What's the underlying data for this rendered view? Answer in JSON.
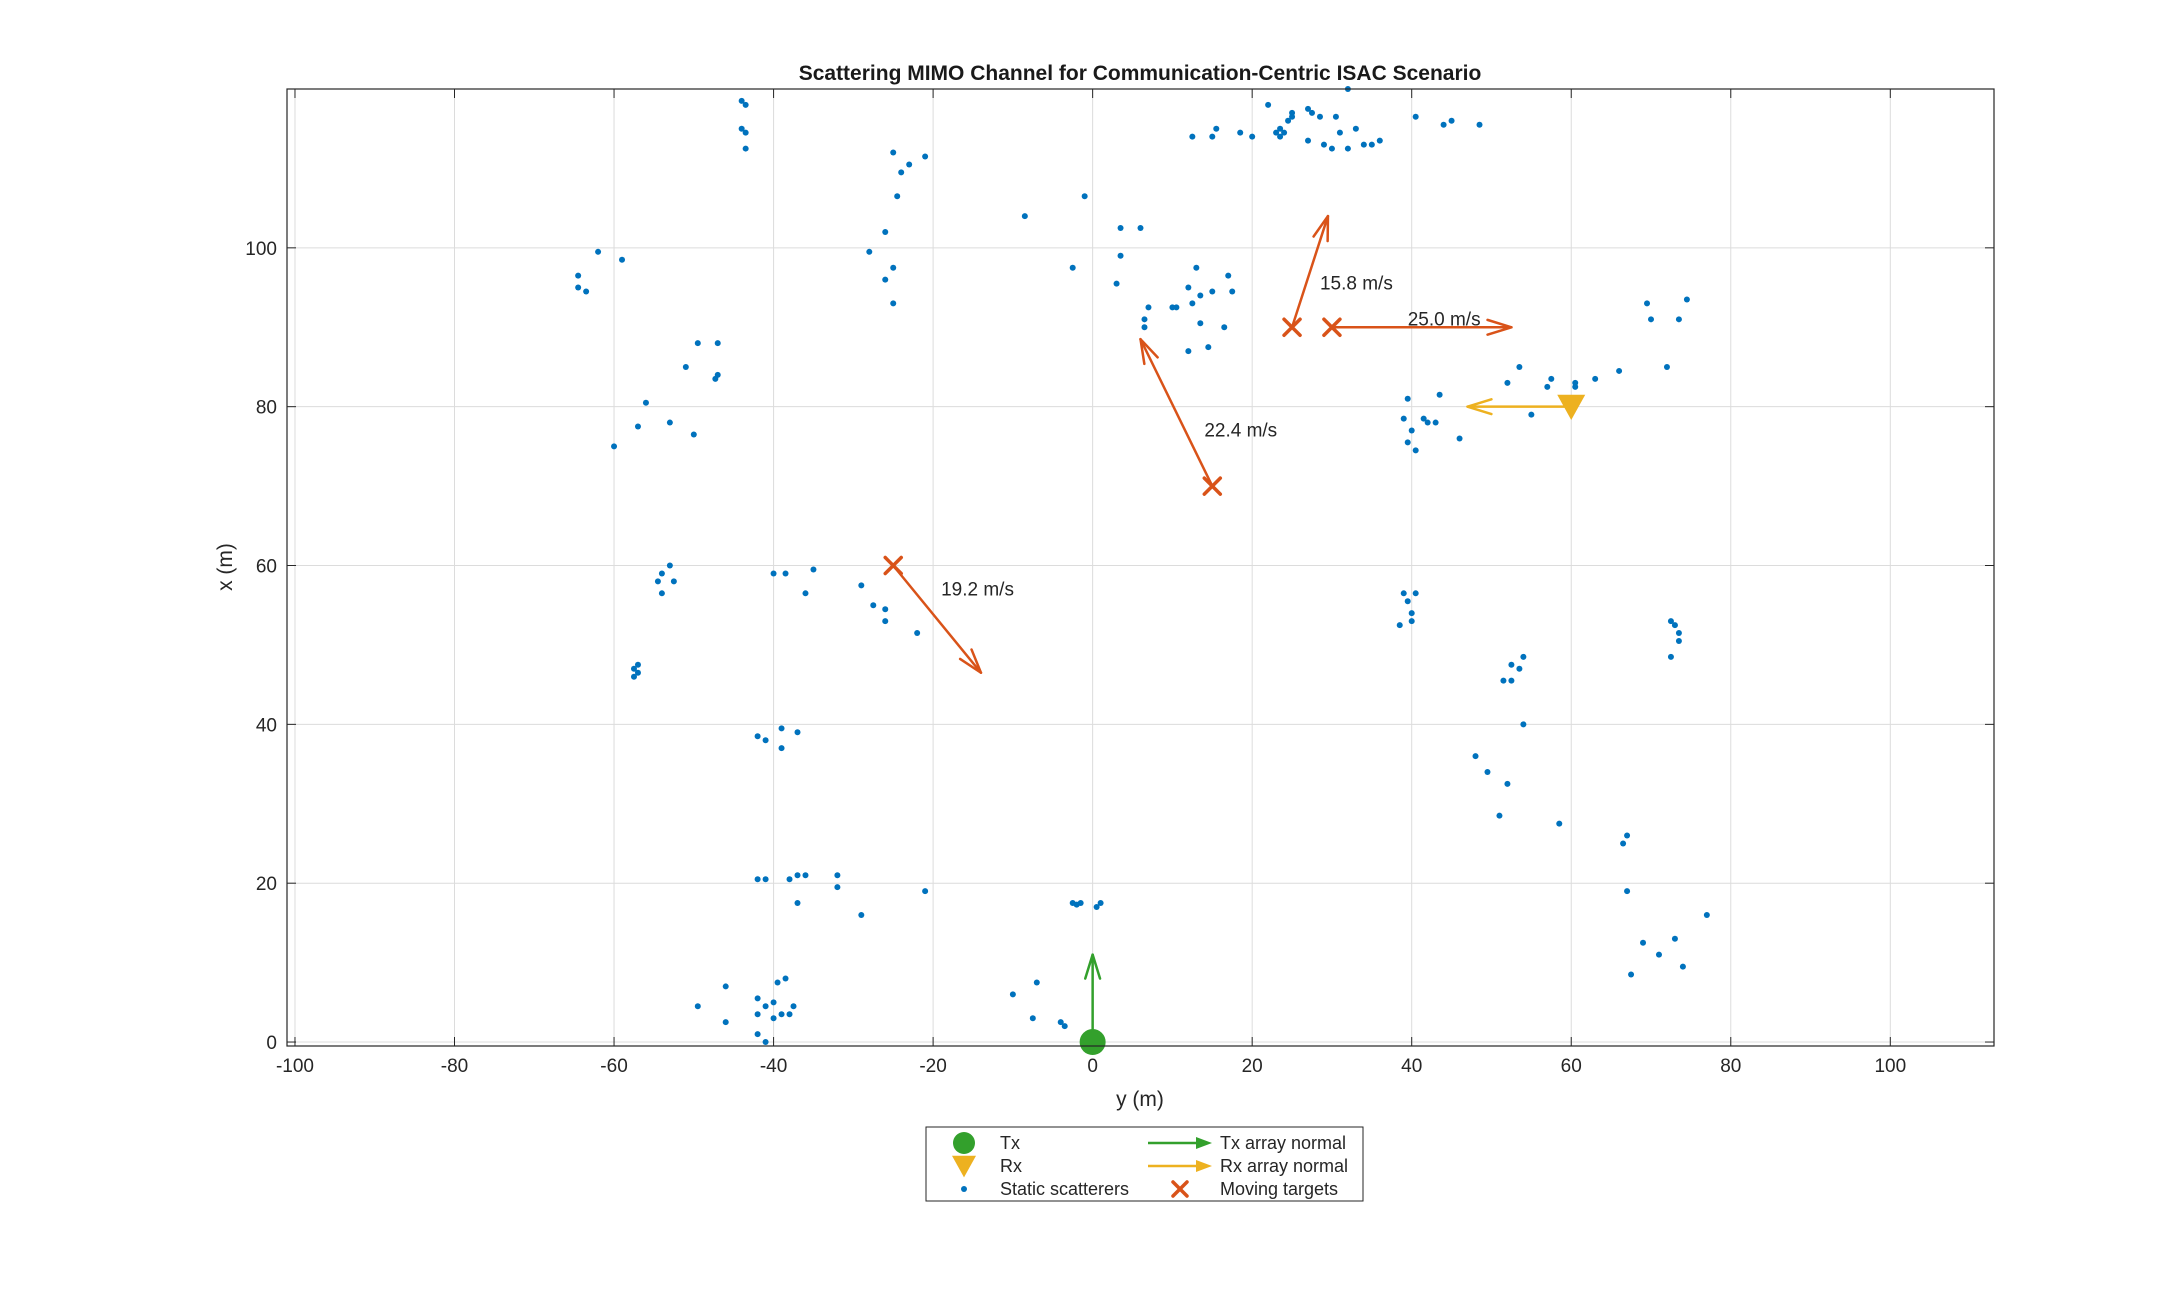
{
  "chart_data": {
    "type": "scatter",
    "title": "Scattering MIMO Channel for Communication-Centric ISAC Scenario",
    "xlabel": "y (m)",
    "ylabel": "x (m)",
    "xlim": [
      -101,
      113
    ],
    "ylim": [
      -0.5,
      120
    ],
    "xticks": [
      -100,
      -80,
      -60,
      -40,
      -20,
      0,
      20,
      40,
      60,
      80,
      100
    ],
    "yticks": [
      0,
      20,
      40,
      60,
      80,
      100
    ],
    "xtick_labels": [
      "-100",
      "-80",
      "-60",
      "-40",
      "-20",
      "0",
      "20",
      "40",
      "60",
      "80",
      "100"
    ],
    "ytick_labels": [
      "0",
      "20",
      "40",
      "60",
      "80",
      "100"
    ],
    "grid": true,
    "legend_position": "bottom-outside",
    "colors": {
      "tx": "#33a02c",
      "rx": "#edb120",
      "scatter": "#0072bd",
      "target": "#d95319"
    },
    "series": [
      {
        "name": "Tx",
        "marker": "circle",
        "points": [
          [
            0,
            0
          ]
        ]
      },
      {
        "name": "Rx",
        "marker": "triangle-down",
        "points": [
          [
            60,
            80
          ]
        ]
      },
      {
        "name": "Static scatterers",
        "marker": "dot",
        "points": [
          [
            -44,
            118.5
          ],
          [
            -43.5,
            118
          ],
          [
            -44,
            115
          ],
          [
            -43.5,
            114.5
          ],
          [
            -43.5,
            112.5
          ],
          [
            -25,
            112
          ],
          [
            -24,
            109.5
          ],
          [
            -24.5,
            106.5
          ],
          [
            -23,
            110.5
          ],
          [
            -21,
            111.5
          ],
          [
            -26,
            102
          ],
          [
            -28,
            99.5
          ],
          [
            -25,
            97.5
          ],
          [
            -26,
            96
          ],
          [
            -25,
            93
          ],
          [
            -62,
            99.5
          ],
          [
            -59,
            98.5
          ],
          [
            -64.5,
            96.5
          ],
          [
            -64.5,
            95
          ],
          [
            -63.5,
            94.5
          ],
          [
            -49.5,
            88
          ],
          [
            -47,
            88
          ],
          [
            -51,
            85
          ],
          [
            -47,
            84
          ],
          [
            -47.3,
            83.5
          ],
          [
            -56,
            80.5
          ],
          [
            -53,
            78
          ],
          [
            -57,
            77.5
          ],
          [
            -50,
            76.5
          ],
          [
            -60,
            75
          ],
          [
            -53,
            60
          ],
          [
            -52.5,
            58
          ],
          [
            -54,
            59
          ],
          [
            -54.5,
            58
          ],
          [
            -54,
            56.5
          ],
          [
            -57,
            47.5
          ],
          [
            -57.5,
            47
          ],
          [
            -57.5,
            46
          ],
          [
            -57,
            46.5
          ],
          [
            -40,
            59
          ],
          [
            -38.5,
            59
          ],
          [
            -35,
            59.5
          ],
          [
            -36,
            56.5
          ],
          [
            -29,
            57.5
          ],
          [
            -27.5,
            55
          ],
          [
            -26,
            54.5
          ],
          [
            -26,
            53
          ],
          [
            -22,
            51.5
          ],
          [
            -42,
            38.5
          ],
          [
            -41,
            38
          ],
          [
            -39,
            39.5
          ],
          [
            -39,
            37
          ],
          [
            -37,
            39
          ],
          [
            -42,
            20.5
          ],
          [
            -41,
            20.5
          ],
          [
            -38,
            20.5
          ],
          [
            -37,
            21
          ],
          [
            -36,
            21
          ],
          [
            -37,
            17.5
          ],
          [
            -32,
            21
          ],
          [
            -32,
            19.5
          ],
          [
            -29,
            16
          ],
          [
            -21,
            19
          ],
          [
            -46,
            7
          ],
          [
            -42,
            5.5
          ],
          [
            -40,
            5
          ],
          [
            -39.5,
            7.5
          ],
          [
            -38.5,
            8
          ],
          [
            -37.5,
            4.5
          ],
          [
            -38,
            3.5
          ],
          [
            -39,
            3.5
          ],
          [
            -40,
            3
          ],
          [
            -41,
            4.5
          ],
          [
            -42,
            3.5
          ],
          [
            -42,
            1
          ],
          [
            -41,
            0
          ],
          [
            -46,
            2.5
          ],
          [
            -49.5,
            4.5
          ],
          [
            -10,
            6
          ],
          [
            -7,
            7.5
          ],
          [
            -7.5,
            3
          ],
          [
            -4,
            2.5
          ],
          [
            -3.5,
            2
          ],
          [
            -2.5,
            17.5
          ],
          [
            -2,
            17.3
          ],
          [
            -1.5,
            17.5
          ],
          [
            0.5,
            17
          ],
          [
            1,
            17.5
          ],
          [
            -8.5,
            104
          ],
          [
            -1,
            106.5
          ],
          [
            -2.5,
            97.5
          ],
          [
            3.5,
            102.5
          ],
          [
            6,
            102.5
          ],
          [
            3.5,
            99
          ],
          [
            3,
            95.5
          ],
          [
            7,
            92.5
          ],
          [
            6.5,
            91
          ],
          [
            6.5,
            90
          ],
          [
            10,
            92.5
          ],
          [
            10.5,
            92.5
          ],
          [
            12,
            95
          ],
          [
            12.5,
            93
          ],
          [
            13,
            97.5
          ],
          [
            13.5,
            94
          ],
          [
            15,
            94.5
          ],
          [
            17,
            96.5
          ],
          [
            17.5,
            94.5
          ],
          [
            16.5,
            90
          ],
          [
            13.5,
            90.5
          ],
          [
            14.5,
            87.5
          ],
          [
            12,
            87
          ],
          [
            12.5,
            114
          ],
          [
            15,
            114
          ],
          [
            15.5,
            115
          ],
          [
            18.5,
            114.5
          ],
          [
            20,
            114
          ],
          [
            22,
            118
          ],
          [
            23.5,
            115
          ],
          [
            23,
            114.5
          ],
          [
            23.5,
            114
          ],
          [
            24,
            114.5
          ],
          [
            24.5,
            116
          ],
          [
            25,
            116.5
          ],
          [
            25,
            117
          ],
          [
            27,
            117.5
          ],
          [
            27,
            113.5
          ],
          [
            27.5,
            117
          ],
          [
            28.5,
            116.5
          ],
          [
            29,
            113
          ],
          [
            30,
            112.5
          ],
          [
            30.5,
            116.5
          ],
          [
            31,
            114.5
          ],
          [
            32,
            112.5
          ],
          [
            32,
            120
          ],
          [
            33,
            115
          ],
          [
            34,
            113
          ],
          [
            35,
            113
          ],
          [
            36,
            113.5
          ],
          [
            40.5,
            116.5
          ],
          [
            44,
            115.5
          ],
          [
            45,
            116
          ],
          [
            48.5,
            115.5
          ],
          [
            39,
            78.5
          ],
          [
            39.5,
            81
          ],
          [
            40,
            77
          ],
          [
            39.5,
            75.5
          ],
          [
            40.5,
            74.5
          ],
          [
            41.5,
            78.5
          ],
          [
            42,
            78
          ],
          [
            43,
            78
          ],
          [
            43.5,
            81.5
          ],
          [
            46,
            76
          ],
          [
            52,
            83
          ],
          [
            53.5,
            85
          ],
          [
            55,
            79
          ],
          [
            57,
            82.5
          ],
          [
            57.5,
            83.5
          ],
          [
            60.5,
            82.5
          ],
          [
            60.5,
            83
          ],
          [
            63,
            83.5
          ],
          [
            66,
            84.5
          ],
          [
            69.5,
            93
          ],
          [
            70,
            91
          ],
          [
            72,
            85
          ],
          [
            73.5,
            91
          ],
          [
            74.5,
            93.5
          ],
          [
            39,
            56.5
          ],
          [
            39.5,
            55.5
          ],
          [
            40.5,
            56.5
          ],
          [
            40,
            54
          ],
          [
            38.5,
            52.5
          ],
          [
            40,
            53
          ],
          [
            53.5,
            47
          ],
          [
            54,
            48.5
          ],
          [
            52.5,
            47.5
          ],
          [
            51.5,
            45.5
          ],
          [
            52.5,
            45.5
          ],
          [
            54,
            40
          ],
          [
            72.5,
            53
          ],
          [
            73,
            52.5
          ],
          [
            73.5,
            51.5
          ],
          [
            73.5,
            50.5
          ],
          [
            72.5,
            48.5
          ],
          [
            48,
            36
          ],
          [
            49.5,
            34
          ],
          [
            52,
            32.5
          ],
          [
            51,
            28.5
          ],
          [
            58.5,
            27.5
          ],
          [
            66.5,
            25
          ],
          [
            67,
            26
          ],
          [
            67,
            19
          ],
          [
            69,
            12.5
          ],
          [
            71,
            11
          ],
          [
            73,
            13
          ],
          [
            74,
            9.5
          ],
          [
            67.5,
            8.5
          ],
          [
            77,
            16
          ]
        ]
      },
      {
        "name": "Moving targets",
        "marker": "x",
        "points": [
          [
            -25,
            60
          ],
          [
            15,
            70
          ],
          [
            25,
            90
          ],
          [
            30,
            90
          ]
        ]
      }
    ],
    "arrows": [
      {
        "name": "Tx array normal",
        "from": [
          0,
          0
        ],
        "to": [
          0,
          11
        ]
      },
      {
        "name": "Rx array normal",
        "from": [
          60,
          80
        ],
        "to": [
          47,
          80
        ]
      },
      {
        "name": "target-velocity",
        "from": [
          -25,
          60
        ],
        "to": [
          -14,
          46.5
        ],
        "label": "19.2 m/s",
        "label_at": [
          -19,
          57
        ]
      },
      {
        "name": "target-velocity",
        "from": [
          15,
          70
        ],
        "to": [
          6,
          88.5
        ],
        "label": "22.4 m/s",
        "label_at": [
          14,
          77
        ]
      },
      {
        "name": "target-velocity",
        "from": [
          25,
          90
        ],
        "to": [
          29.5,
          104
        ],
        "label": "15.8 m/s",
        "label_at": [
          28.5,
          95.5
        ]
      },
      {
        "name": "target-velocity",
        "from": [
          30,
          90
        ],
        "to": [
          52.5,
          90
        ],
        "label": "25.0 m/s",
        "label_at": [
          39.5,
          91
        ]
      }
    ],
    "legend": [
      {
        "label": "Tx",
        "symbol": "tx-marker"
      },
      {
        "label": "Rx",
        "symbol": "rx-marker"
      },
      {
        "label": "Static scatterers",
        "symbol": "scatter-marker"
      },
      {
        "label": "Tx array normal",
        "symbol": "tx-arrow"
      },
      {
        "label": "Rx array normal",
        "symbol": "rx-arrow"
      },
      {
        "label": "Moving targets",
        "symbol": "target-marker"
      }
    ]
  }
}
